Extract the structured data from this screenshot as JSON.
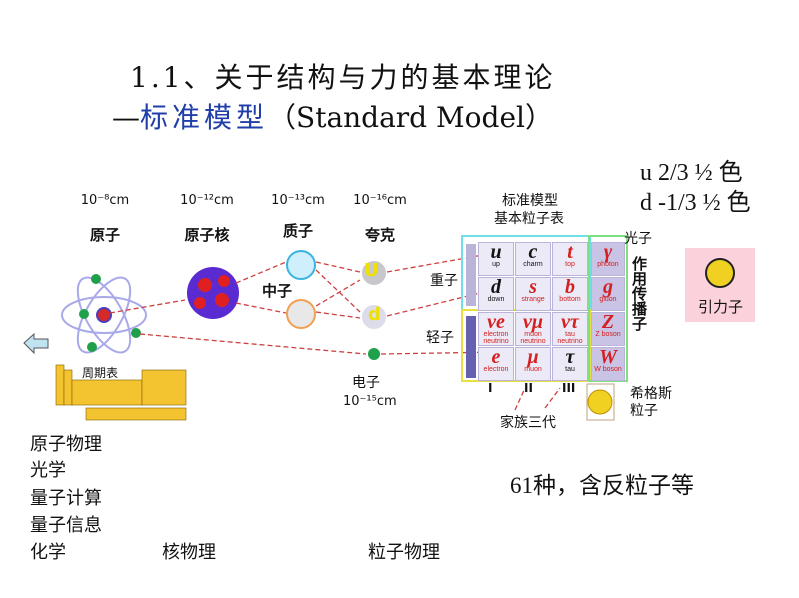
{
  "title": {
    "line1": "1.1、关于结构与力的基本理论",
    "dash": "—",
    "line2_cn": "标准模型",
    "line2_en": "（Standard Model）"
  },
  "quark_props": {
    "u": "u  2/3  ½ 色",
    "d": "d -1/3  ½ 色"
  },
  "scales": [
    {
      "size": "10⁻⁸cm",
      "name": "原子"
    },
    {
      "size": "10⁻¹²cm",
      "name": "原子核"
    },
    {
      "size": "10⁻¹³cm",
      "name": "质子"
    },
    {
      "size": "10⁻¹⁶cm",
      "name": "夸克"
    }
  ],
  "neutron": "中子",
  "periodic_table": "周期表",
  "electron": {
    "name": "电子",
    "size": "10⁻¹⁵cm"
  },
  "quark_letters": {
    "u": "U",
    "d": "d"
  },
  "table": {
    "title1": "标准模型",
    "title2": "基本粒子表",
    "hadron": "重子",
    "lepton": "轻子",
    "photon": "光子",
    "carriers": "作用传播子",
    "higgs": "希格斯粒子",
    "generations": [
      "I",
      "II",
      "III"
    ],
    "family": "家族三代",
    "particles": [
      [
        {
          "s": "u",
          "n": "up"
        },
        {
          "s": "c",
          "n": "charm"
        },
        {
          "s": "t",
          "n": "top"
        }
      ],
      [
        {
          "s": "d",
          "n": "down"
        },
        {
          "s": "s",
          "n": "strange"
        },
        {
          "s": "b",
          "n": "bottom"
        }
      ],
      [
        {
          "s": "νe",
          "n": "electron neutrino"
        },
        {
          "s": "νμ",
          "n": "muon neutrino"
        },
        {
          "s": "ντ",
          "n": "tau neutrino"
        }
      ],
      [
        {
          "s": "e",
          "n": "electron"
        },
        {
          "s": "μ",
          "n": "muon"
        },
        {
          "s": "τ",
          "n": "tau"
        }
      ]
    ],
    "bosons": [
      {
        "s": "γ",
        "n": "photon"
      },
      {
        "s": "g",
        "n": "gluon"
      },
      {
        "s": "Z",
        "n": "Z boson"
      },
      {
        "s": "W",
        "n": "W boson"
      }
    ]
  },
  "graviton": "引力子",
  "count": "61种，含反粒子等",
  "fields": {
    "atomic": [
      "原子物理",
      "光学",
      "量子计算",
      "量子信息",
      "化学"
    ],
    "nuclear": "核物理",
    "particle": "粒子物理"
  }
}
